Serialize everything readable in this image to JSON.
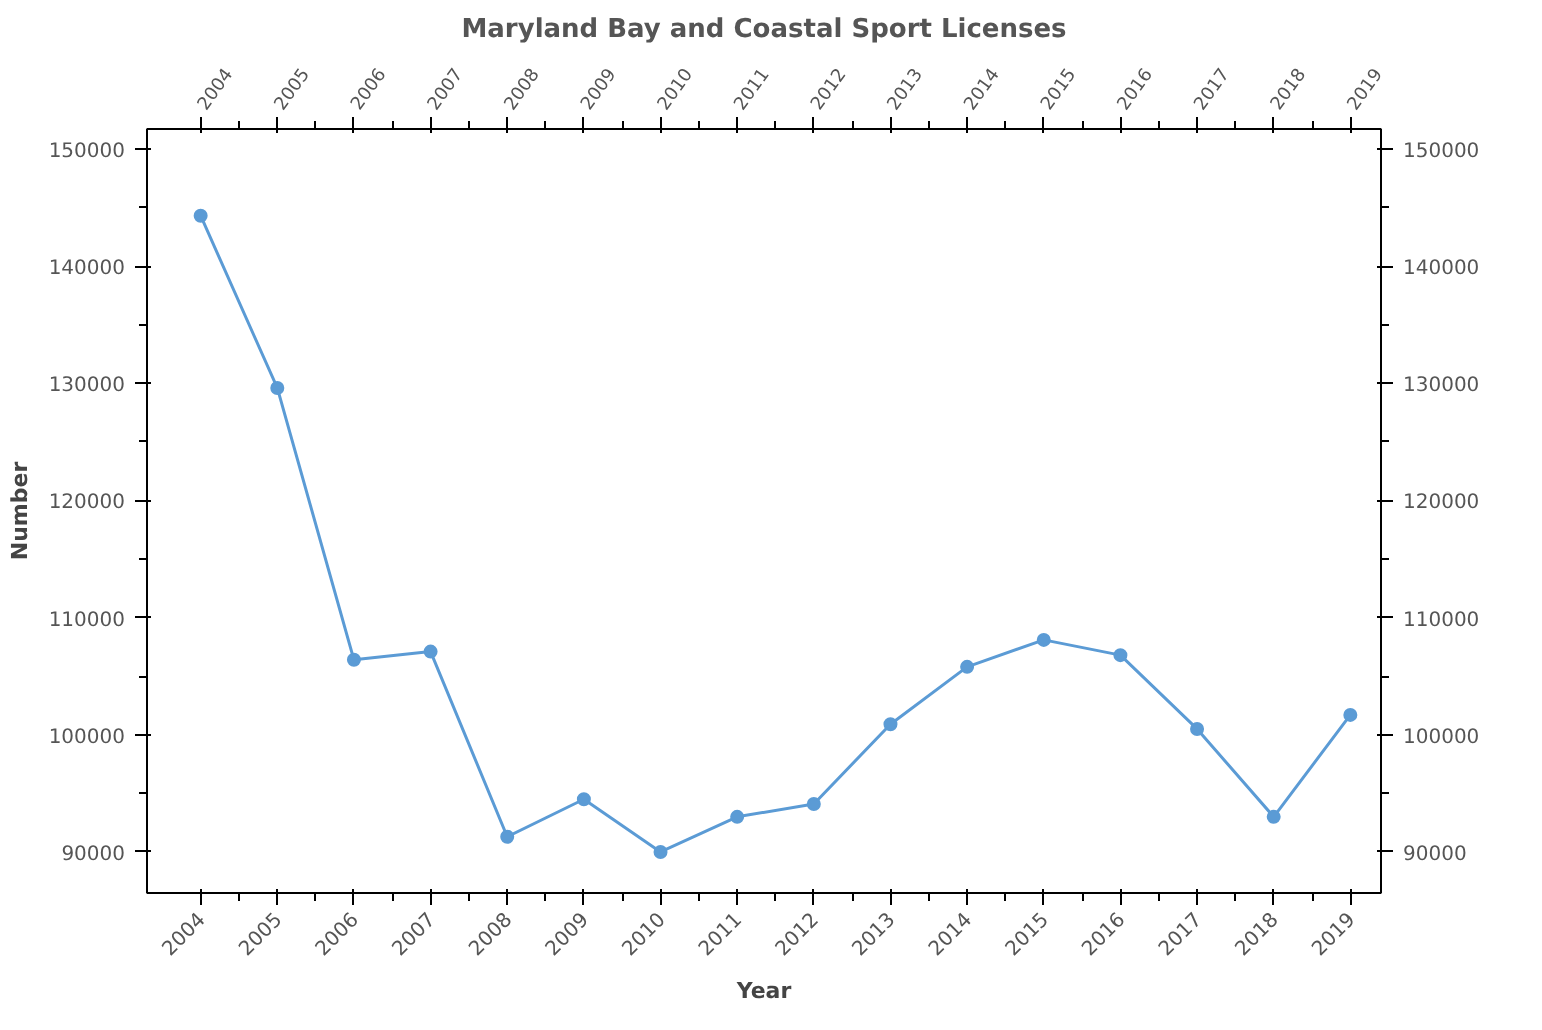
{
  "chart_data": {
    "type": "line",
    "title": "Maryland Bay and Coastal Sport Licenses",
    "xlabel": "Year",
    "ylabel": "Number",
    "x": [
      2004,
      2005,
      2006,
      2007,
      2008,
      2009,
      2010,
      2011,
      2012,
      2013,
      2014,
      2015,
      2016,
      2017,
      2018,
      2019
    ],
    "series": [
      {
        "color": "#5b9bd5",
        "values": [
          144300,
          129600,
          106400,
          107100,
          91300,
          94500,
          90000,
          93000,
          94100,
          100900,
          105800,
          108100,
          106800,
          100500,
          93000,
          101700
        ]
      }
    ],
    "xlim": [
      2003.3,
      2019.4
    ],
    "xticks": [
      2004,
      2005,
      2006,
      2007,
      2008,
      2009,
      2010,
      2011,
      2012,
      2013,
      2014,
      2015,
      2016,
      2017,
      2018,
      2019
    ],
    "x2lim": [
      2003.3,
      2019.4
    ],
    "x2ticks": [
      2004,
      2005,
      2006,
      2007,
      2008,
      2009,
      2010,
      2011,
      2012,
      2013,
      2014,
      2015,
      2016,
      2017,
      2018,
      2019
    ],
    "ylim": [
      86500,
      151700
    ],
    "yticks": [
      90000,
      100000,
      110000,
      120000,
      130000,
      140000,
      150000
    ],
    "y2lim": [
      86500,
      151700
    ],
    "y2ticks": [
      90000,
      100000,
      110000,
      120000,
      130000,
      140000,
      150000
    ],
    "grid": false,
    "marker": "circle",
    "line_style": "solid"
  }
}
